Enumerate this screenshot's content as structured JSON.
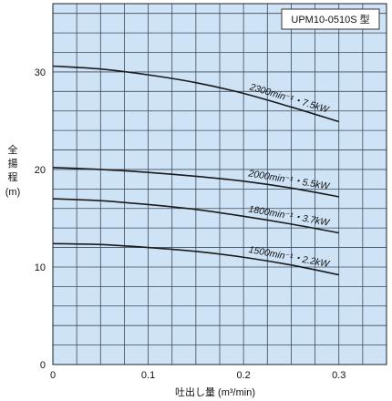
{
  "chart_data": {
    "type": "line",
    "model_label": "UPM10-0510S 型",
    "ylabel_chars": [
      "全",
      "揚",
      "程",
      "(m)"
    ],
    "xlabel": "吐出し量 (m³/min)",
    "xlim": [
      0,
      0.35
    ],
    "ylim": [
      0,
      37
    ],
    "xticks": [
      0,
      0.1,
      0.2,
      0.3
    ],
    "xtick_labels": [
      "0",
      "0.1",
      "0.2",
      "0.3"
    ],
    "yticks": [
      0,
      10,
      20,
      30
    ],
    "ytick_labels": [
      "0",
      "10",
      "20",
      "30"
    ],
    "grid": true,
    "background": "#cfe3f6",
    "line_color": "#1a1a1a",
    "series": [
      {
        "name": "2300min⁻¹・7.5kW",
        "x": [
          0,
          0.05,
          0.1,
          0.15,
          0.2,
          0.25,
          0.3
        ],
        "y": [
          30.6,
          30.3,
          29.7,
          28.9,
          27.8,
          26.4,
          24.9
        ]
      },
      {
        "name": "2000min⁻¹・5.5kW",
        "x": [
          0,
          0.05,
          0.1,
          0.15,
          0.2,
          0.25,
          0.3
        ],
        "y": [
          20.2,
          20.0,
          19.7,
          19.3,
          18.8,
          18.1,
          17.2
        ]
      },
      {
        "name": "1800min⁻¹・3.7kW",
        "x": [
          0,
          0.05,
          0.1,
          0.15,
          0.2,
          0.25,
          0.3
        ],
        "y": [
          17.0,
          16.8,
          16.4,
          15.9,
          15.2,
          14.4,
          13.5
        ]
      },
      {
        "name": "1500min⁻¹・2.2kW",
        "x": [
          0,
          0.05,
          0.1,
          0.15,
          0.2,
          0.25,
          0.3
        ],
        "y": [
          12.4,
          12.3,
          12.0,
          11.6,
          11.0,
          10.2,
          9.2
        ]
      }
    ]
  }
}
